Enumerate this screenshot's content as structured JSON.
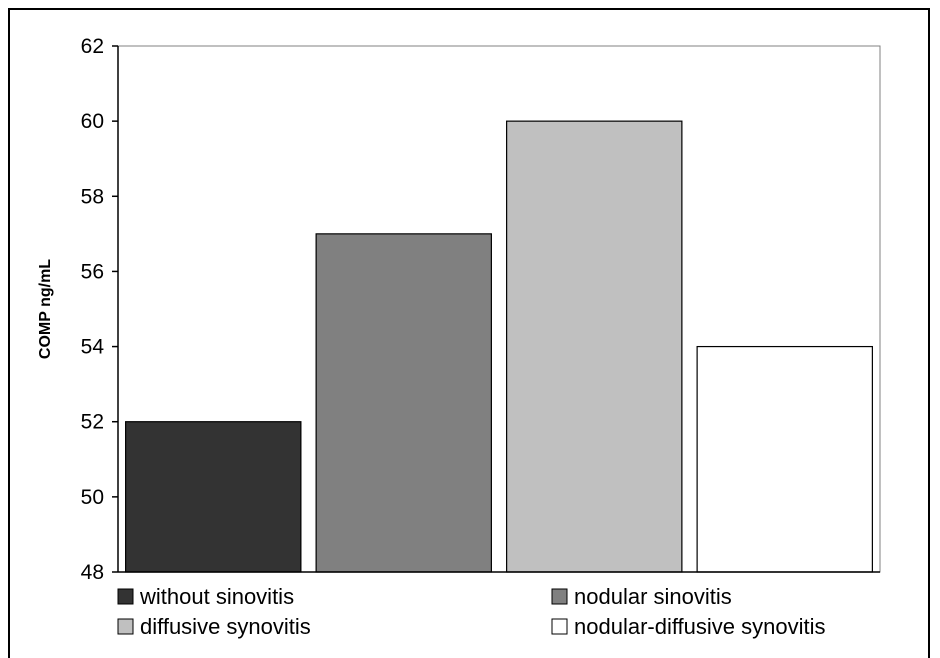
{
  "chart_data": {
    "type": "bar",
    "title": "",
    "xlabel": "",
    "ylabel": "COMP ng/mL",
    "ylim": [
      48,
      62
    ],
    "yticks": [
      48,
      50,
      52,
      54,
      56,
      58,
      60,
      62
    ],
    "grid": false,
    "legend_position": "bottom",
    "series": [
      {
        "name": "without sinovitis",
        "value": 52,
        "color": "#333333"
      },
      {
        "name": "nodular sinovitis",
        "value": 57,
        "color": "#808080"
      },
      {
        "name": "diffusive synovitis",
        "value": 60,
        "color": "#c0c0c0"
      },
      {
        "name": "nodular-diffusive synovitis",
        "value": 54,
        "color": "#ffffff"
      }
    ]
  }
}
